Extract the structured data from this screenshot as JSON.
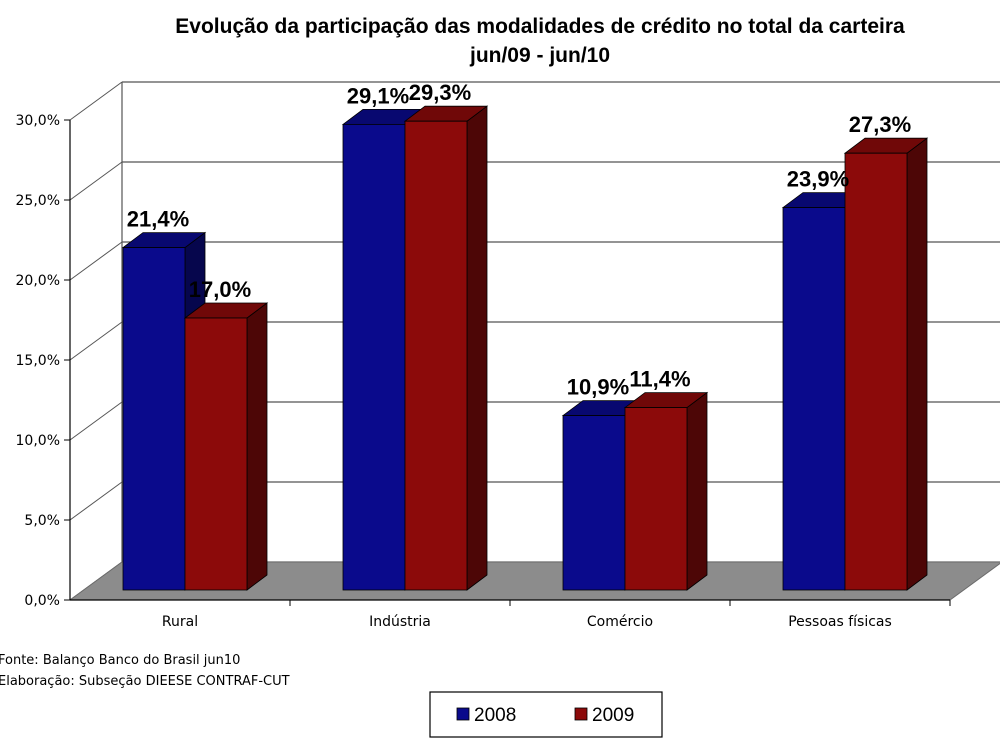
{
  "chart_data": {
    "type": "bar",
    "title": "Evolução da participação  das modalidades de crédito no total da carteira",
    "subtitle": "jun/09 - jun/10",
    "categories": [
      "Rural",
      "Indústria",
      "Comércio",
      "Pessoas físicas"
    ],
    "series": [
      {
        "name": "2008",
        "values": [
          21.4,
          29.1,
          10.9,
          23.9
        ],
        "labels": [
          "21,4%",
          "29,1%",
          "10,9%",
          "23,9%"
        ],
        "color": "#0a0a8c"
      },
      {
        "name": "2009",
        "values": [
          17.0,
          29.3,
          11.4,
          27.3
        ],
        "labels": [
          "17,0%",
          "29,3%",
          "11,4%",
          "27,3%"
        ],
        "color": "#8c0a0a"
      }
    ],
    "ylim": [
      0,
      30
    ],
    "yticks": [
      0,
      5,
      10,
      15,
      20,
      25,
      30
    ],
    "ytick_labels": [
      "0,0%",
      "5,0%",
      "10,0%",
      "15,0%",
      "20,0%",
      "25,0%",
      "30,0%"
    ],
    "grid": true,
    "legend_position": "bottom",
    "colors": {
      "floor": "#8c8c8c",
      "grid": "#555555"
    }
  },
  "notes": {
    "source": "Fonte: Balanço Banco do Brasil jun10",
    "elaboration": "Elaboração: Subseção DIEESE CONTRAF-CUT"
  }
}
